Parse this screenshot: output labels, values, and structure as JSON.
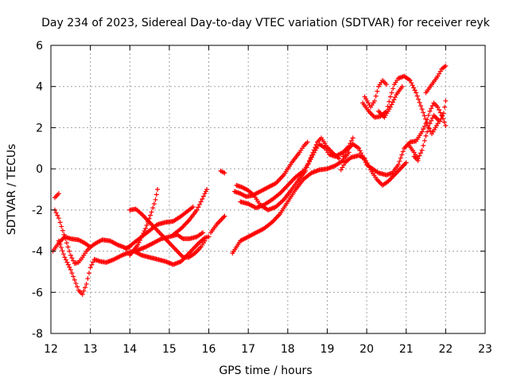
{
  "chart_data": {
    "type": "scatter",
    "title": "Day 234 of 2023, Sidereal Day-to-day VTEC variation (SDTVAR) for receiver reyk",
    "xlabel": "GPS time / hours",
    "ylabel": "SDTVAR / TECUs",
    "xlim": [
      12,
      23
    ],
    "ylim": [
      -8,
      6
    ],
    "xticks": [
      "12",
      "13",
      "14",
      "15",
      "16",
      "17",
      "18",
      "19",
      "20",
      "21",
      "22",
      "23"
    ],
    "yticks": [
      "-8",
      "-6",
      "-4",
      "-2",
      "0",
      "2",
      "4",
      "6"
    ],
    "grid": true,
    "marker": "+",
    "color": "#ff0000",
    "series": [
      {
        "segments": [
          [
            [
              12.05,
              -4.0
            ],
            [
              12.2,
              -3.6
            ],
            [
              12.35,
              -3.3
            ],
            [
              12.5,
              -3.4
            ],
            [
              12.7,
              -3.45
            ],
            [
              12.85,
              -3.6
            ],
            [
              13.0,
              -3.8
            ],
            [
              13.15,
              -3.6
            ],
            [
              13.3,
              -3.45
            ],
            [
              13.5,
              -3.5
            ],
            [
              13.7,
              -3.7
            ],
            [
              13.9,
              -3.85
            ],
            [
              14.0,
              -3.8
            ]
          ],
          [
            [
              13.9,
              -3.9
            ],
            [
              14.1,
              -3.6
            ],
            [
              14.3,
              -3.3
            ],
            [
              14.5,
              -3.0
            ],
            [
              14.7,
              -2.7
            ],
            [
              14.9,
              -2.6
            ],
            [
              15.1,
              -2.55
            ],
            [
              15.3,
              -2.3
            ],
            [
              15.5,
              -2.0
            ],
            [
              15.6,
              -1.85
            ]
          ],
          [
            [
              15.1,
              -3.2
            ],
            [
              15.3,
              -2.9
            ],
            [
              15.5,
              -2.5
            ],
            [
              15.7,
              -2.0
            ],
            [
              15.8,
              -1.6
            ],
            [
              15.9,
              -1.2
            ],
            [
              15.95,
              -1.0
            ]
          ],
          [
            [
              16.05,
              -3.1
            ],
            [
              16.2,
              -2.7
            ],
            [
              16.35,
              -2.4
            ],
            [
              16.4,
              -2.3
            ]
          ],
          [
            [
              16.3,
              -0.1
            ],
            [
              16.4,
              -0.2
            ]
          ],
          [
            [
              16.6,
              -4.1
            ],
            [
              16.8,
              -3.5
            ],
            [
              17.0,
              -3.3
            ],
            [
              17.2,
              -3.1
            ],
            [
              17.4,
              -2.9
            ],
            [
              17.6,
              -2.6
            ],
            [
              17.8,
              -2.2
            ],
            [
              18.0,
              -1.6
            ],
            [
              18.2,
              -1.0
            ],
            [
              18.4,
              -0.5
            ],
            [
              18.6,
              -0.2
            ],
            [
              18.8,
              -0.05
            ],
            [
              19.0,
              0.0
            ],
            [
              19.2,
              0.15
            ],
            [
              19.4,
              0.4
            ],
            [
              19.55,
              0.8
            ]
          ],
          [
            [
              19.4,
              0.6
            ],
            [
              19.5,
              0.9
            ],
            [
              19.65,
              1.2
            ],
            [
              19.8,
              1.0
            ],
            [
              20.0,
              0.2
            ],
            [
              20.15,
              0.0
            ],
            [
              20.3,
              -0.2
            ],
            [
              20.5,
              -0.3
            ],
            [
              20.65,
              -0.2
            ],
            [
              20.8,
              0.2
            ],
            [
              20.95,
              1.0
            ],
            [
              21.1,
              1.3
            ],
            [
              21.25,
              1.35
            ],
            [
              21.4,
              1.8
            ],
            [
              21.5,
              2.2
            ],
            [
              21.6,
              2.8
            ],
            [
              21.7,
              3.2
            ],
            [
              21.8,
              3.0
            ],
            [
              21.9,
              2.6
            ],
            [
              22.0,
              2.1
            ]
          ]
        ]
      },
      {
        "segments": [
          [
            [
              12.1,
              -2.0
            ],
            [
              12.2,
              -2.4
            ],
            [
              12.3,
              -3.0
            ],
            [
              12.4,
              -3.6
            ],
            [
              12.5,
              -4.2
            ],
            [
              12.6,
              -4.6
            ],
            [
              12.7,
              -4.55
            ],
            [
              12.8,
              -4.3
            ],
            [
              12.9,
              -4.0
            ],
            [
              13.0,
              -3.8
            ]
          ],
          [
            [
              12.1,
              -1.4
            ],
            [
              12.2,
              -1.2
            ]
          ],
          [
            [
              12.2,
              -3.5
            ],
            [
              12.35,
              -4.3
            ],
            [
              12.5,
              -4.9
            ],
            [
              12.6,
              -5.4
            ],
            [
              12.7,
              -5.9
            ],
            [
              12.8,
              -6.1
            ],
            [
              12.9,
              -5.6
            ],
            [
              13.0,
              -4.8
            ],
            [
              13.1,
              -4.4
            ],
            [
              13.25,
              -4.5
            ],
            [
              13.4,
              -4.55
            ],
            [
              13.6,
              -4.4
            ],
            [
              13.8,
              -4.2
            ],
            [
              14.0,
              -4.05
            ],
            [
              14.2,
              -3.95
            ],
            [
              14.4,
              -3.8
            ],
            [
              14.6,
              -3.6
            ],
            [
              14.8,
              -3.4
            ],
            [
              15.0,
              -3.3
            ],
            [
              15.2,
              -3.2
            ],
            [
              15.35,
              -3.4
            ],
            [
              15.5,
              -3.4
            ],
            [
              15.7,
              -3.3
            ],
            [
              15.85,
              -3.1
            ]
          ],
          [
            [
              14.0,
              -2.0
            ],
            [
              14.15,
              -1.95
            ],
            [
              14.3,
              -2.2
            ],
            [
              14.45,
              -2.5
            ],
            [
              14.6,
              -2.8
            ],
            [
              14.75,
              -3.1
            ],
            [
              14.9,
              -3.4
            ],
            [
              15.05,
              -3.7
            ],
            [
              15.2,
              -4.0
            ],
            [
              15.35,
              -4.3
            ],
            [
              15.5,
              -4.3
            ],
            [
              15.65,
              -4.1
            ],
            [
              15.8,
              -3.8
            ],
            [
              15.9,
              -3.5
            ]
          ],
          [
            [
              14.1,
              -4.0
            ],
            [
              14.3,
              -4.2
            ],
            [
              14.5,
              -4.3
            ],
            [
              14.7,
              -4.4
            ],
            [
              14.9,
              -4.5
            ],
            [
              15.1,
              -4.65
            ],
            [
              15.3,
              -4.5
            ],
            [
              15.45,
              -4.2
            ],
            [
              15.6,
              -3.9
            ],
            [
              15.75,
              -3.6
            ],
            [
              15.9,
              -3.35
            ],
            [
              16.0,
              -3.3
            ]
          ],
          [
            [
              14.0,
              -4.2
            ],
            [
              14.2,
              -3.7
            ],
            [
              14.4,
              -2.9
            ],
            [
              14.55,
              -2.1
            ],
            [
              14.65,
              -1.5
            ],
            [
              14.7,
              -1.0
            ]
          ],
          [
            [
              16.65,
              -1.1
            ],
            [
              16.8,
              -1.2
            ],
            [
              16.95,
              -1.35
            ],
            [
              17.1,
              -1.3
            ],
            [
              17.3,
              -1.1
            ],
            [
              17.5,
              -0.9
            ],
            [
              17.7,
              -0.7
            ],
            [
              17.9,
              -0.3
            ],
            [
              18.1,
              0.3
            ],
            [
              18.3,
              0.8
            ],
            [
              18.4,
              1.1
            ],
            [
              18.5,
              1.3
            ]
          ],
          [
            [
              16.8,
              -1.6
            ],
            [
              17.0,
              -1.7
            ],
            [
              17.2,
              -1.9
            ],
            [
              17.4,
              -1.75
            ],
            [
              17.6,
              -1.5
            ],
            [
              17.8,
              -1.2
            ],
            [
              18.0,
              -0.8
            ],
            [
              18.2,
              -0.4
            ],
            [
              18.4,
              -0.1
            ],
            [
              18.55,
              0.35
            ],
            [
              18.7,
              0.9
            ],
            [
              18.8,
              1.2
            ],
            [
              18.95,
              1.0
            ],
            [
              19.05,
              0.7
            ],
            [
              19.2,
              0.6
            ],
            [
              19.4,
              0.8
            ],
            [
              19.55,
              1.1
            ],
            [
              19.65,
              1.5
            ]
          ],
          [
            [
              16.7,
              -0.8
            ],
            [
              16.85,
              -0.9
            ],
            [
              17.0,
              -1.05
            ],
            [
              17.15,
              -1.3
            ],
            [
              17.3,
              -1.75
            ],
            [
              17.5,
              -2.0
            ],
            [
              17.7,
              -1.85
            ],
            [
              17.9,
              -1.5
            ],
            [
              18.1,
              -1.0
            ],
            [
              18.25,
              -0.6
            ],
            [
              18.45,
              -0.1
            ],
            [
              18.55,
              0.4
            ],
            [
              18.75,
              1.3
            ],
            [
              18.85,
              1.5
            ],
            [
              19.0,
              1.05
            ],
            [
              19.15,
              0.75
            ],
            [
              19.3,
              0.5
            ]
          ],
          [
            [
              19.35,
              -0.05
            ],
            [
              19.45,
              0.3
            ],
            [
              19.6,
              0.55
            ],
            [
              19.8,
              0.65
            ],
            [
              19.95,
              0.5
            ],
            [
              20.1,
              -0.05
            ],
            [
              20.25,
              -0.5
            ],
            [
              20.4,
              -0.8
            ],
            [
              20.55,
              -0.6
            ],
            [
              20.7,
              -0.3
            ],
            [
              20.85,
              0.0
            ],
            [
              21.0,
              0.3
            ]
          ],
          [
            [
              19.9,
              3.2
            ],
            [
              20.05,
              2.8
            ],
            [
              20.2,
              2.5
            ],
            [
              20.35,
              2.55
            ],
            [
              20.5,
              2.8
            ],
            [
              20.6,
              3.5
            ],
            [
              20.7,
              4.1
            ],
            [
              20.8,
              4.4
            ],
            [
              20.95,
              4.5
            ],
            [
              21.1,
              4.3
            ],
            [
              21.25,
              3.7
            ],
            [
              21.4,
              2.9
            ],
            [
              21.55,
              2.1
            ],
            [
              21.65,
              1.7
            ],
            [
              21.8,
              2.2
            ]
          ],
          [
            [
              19.95,
              3.5
            ],
            [
              20.1,
              3.0
            ],
            [
              20.2,
              3.3
            ],
            [
              20.3,
              4.0
            ],
            [
              20.4,
              4.3
            ],
            [
              20.5,
              4.1
            ]
          ],
          [
            [
              20.3,
              2.8
            ],
            [
              20.45,
              2.5
            ],
            [
              20.6,
              3.0
            ],
            [
              20.75,
              3.6
            ],
            [
              20.9,
              4.0
            ]
          ],
          [
            [
              21.05,
              1.2
            ],
            [
              21.2,
              0.8
            ],
            [
              21.3,
              0.5
            ],
            [
              21.4,
              0.9
            ],
            [
              21.5,
              1.6
            ],
            [
              21.6,
              2.2
            ],
            [
              21.7,
              2.6
            ],
            [
              21.85,
              2.3
            ],
            [
              21.95,
              2.7
            ],
            [
              22.0,
              3.3
            ]
          ],
          [
            [
              21.5,
              3.7
            ],
            [
              21.65,
              4.1
            ],
            [
              21.8,
              4.5
            ],
            [
              21.9,
              4.85
            ],
            [
              22.0,
              5.0
            ]
          ],
          [
            [
              21.2,
              0.6
            ],
            [
              21.3,
              0.4
            ]
          ]
        ]
      }
    ]
  }
}
